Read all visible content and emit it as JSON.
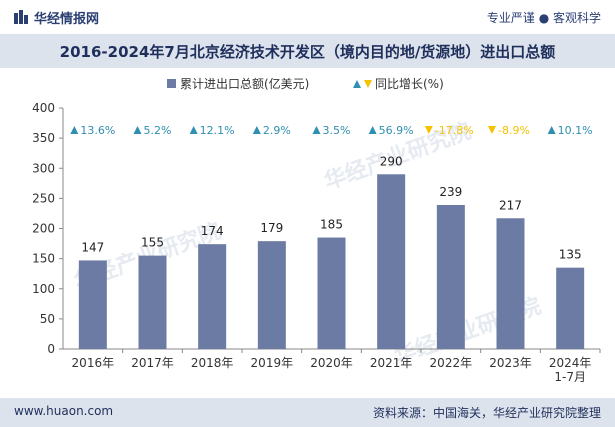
{
  "header": {
    "brand": "华经情报网",
    "tagline": "专业严谨 ● 客观科学"
  },
  "title": "2016-2024年7月北京经济技术开发区（境内目的地/货源地）进出口总额",
  "footer": {
    "site": "www.huaon.com",
    "source": "资料来源：中国海关，华经产业研究院整理"
  },
  "watermark": "华经产业研究院",
  "colors": {
    "bar": "#6b7ba3",
    "up_arrow": "#2f8fb0",
    "down_arrow": "#f5c200",
    "up_text": "#2f8fb0",
    "down_text": "#f5c200",
    "header_band": "#dde3ec",
    "title_text": "#1f2f5c"
  },
  "chart_data": {
    "type": "bar",
    "categories": [
      "2016年",
      "2017年",
      "2018年",
      "2019年",
      "2020年",
      "2021年",
      "2022年",
      "2023年",
      "2024年\n1-7月"
    ],
    "series": [
      {
        "name": "累计进出口总额(亿美元)",
        "values": [
          147,
          155,
          174,
          179,
          185,
          290,
          239,
          217,
          135
        ]
      },
      {
        "name": "同比增长(%)",
        "values": [
          13.6,
          5.2,
          12.1,
          2.9,
          3.5,
          56.9,
          -17.8,
          -8.9,
          10.1
        ]
      }
    ],
    "growth_labels": [
      "13.6%",
      "5.2%",
      "12.1%",
      "2.9%",
      "3.5%",
      "56.9%",
      "-17.8%",
      "-8.9%",
      "10.1%"
    ],
    "ylim": [
      0,
      400
    ],
    "yticks": [
      0,
      50,
      100,
      150,
      200,
      250,
      300,
      350,
      400
    ],
    "legend_position": "top-center",
    "grid": false
  }
}
